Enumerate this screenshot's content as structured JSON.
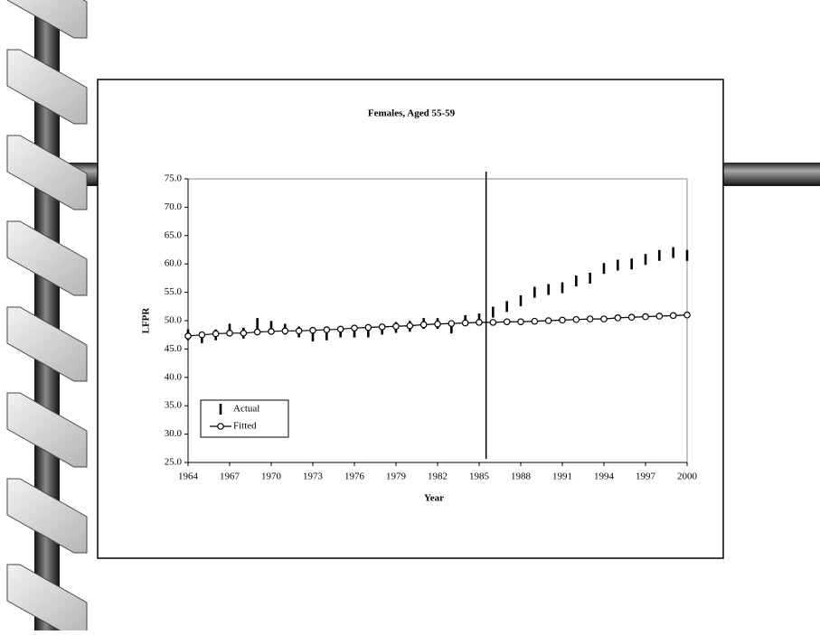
{
  "chart_data": {
    "type": "line",
    "title": "Females, Aged 55-59",
    "x_label": "Year",
    "y_label": "LFPR",
    "x": [
      1964,
      1965,
      1966,
      1967,
      1968,
      1969,
      1970,
      1971,
      1972,
      1973,
      1974,
      1975,
      1976,
      1977,
      1978,
      1979,
      1980,
      1981,
      1982,
      1983,
      1984,
      1985,
      1986,
      1987,
      1988,
      1989,
      1990,
      1991,
      1992,
      1993,
      1994,
      1995,
      1996,
      1997,
      1998,
      1999,
      2000
    ],
    "series": [
      {
        "name": "Actual",
        "color": "#000000",
        "marker": "dash",
        "values": [
          47.5,
          47.0,
          47.5,
          48.5,
          47.8,
          49.5,
          49.0,
          48.5,
          48.0,
          47.3,
          47.5,
          48.0,
          48.0,
          48.0,
          48.5,
          48.8,
          49.0,
          49.5,
          49.5,
          48.7,
          50.0,
          50.3,
          51.5,
          52.5,
          53.5,
          55.0,
          55.5,
          55.8,
          57.0,
          57.5,
          59.2,
          59.8,
          60.0,
          60.8,
          61.5,
          62.0,
          61.5
        ]
      },
      {
        "name": "Fitted",
        "color": "#000000",
        "marker": "circle",
        "values": [
          47.3,
          47.5,
          47.7,
          47.8,
          47.8,
          48.0,
          48.1,
          48.2,
          48.2,
          48.3,
          48.4,
          48.5,
          48.7,
          48.8,
          48.9,
          49.0,
          49.1,
          49.3,
          49.4,
          49.5,
          49.6,
          49.7,
          49.7,
          49.8,
          49.8,
          49.9,
          50.0,
          50.1,
          50.2,
          50.3,
          50.3,
          50.5,
          50.6,
          50.7,
          50.8,
          50.9,
          51.0
        ]
      }
    ],
    "xlim": [
      1964,
      2000
    ],
    "xticks": [
      1964,
      1967,
      1970,
      1973,
      1976,
      1979,
      1982,
      1985,
      1988,
      1991,
      1994,
      1997,
      2000
    ],
    "ylim": [
      25,
      75
    ],
    "yticks": [
      {
        "value": 25,
        "label": "25.0"
      },
      {
        "value": 30,
        "label": "30.0"
      },
      {
        "value": 35,
        "label": "35.0"
      },
      {
        "value": 40,
        "label": "40.0"
      },
      {
        "value": 45,
        "label": "45.0"
      },
      {
        "value": 50,
        "label": "50.0"
      },
      {
        "value": 55,
        "label": "55.0"
      },
      {
        "value": 60,
        "label": "60.0"
      },
      {
        "value": 65,
        "label": "65.0"
      },
      {
        "value": 70,
        "label": "70.0"
      },
      {
        "value": 75,
        "label": "75.0"
      }
    ],
    "reference_line_x": 1985.5,
    "legend": "lower-left",
    "grid": false
  }
}
